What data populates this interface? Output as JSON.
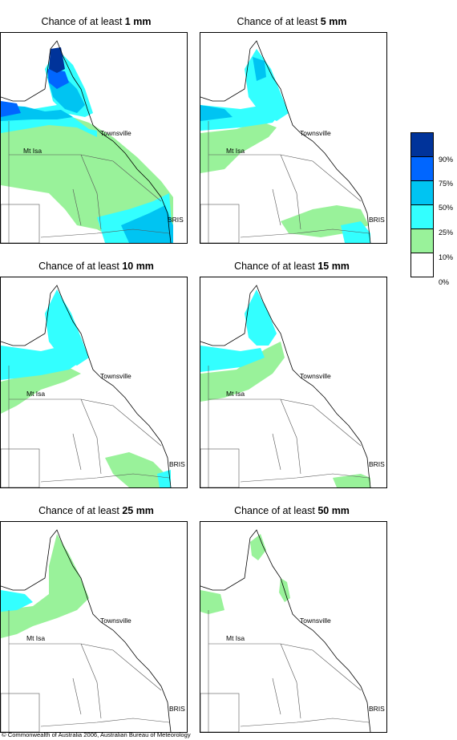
{
  "panels": [
    {
      "prefix": "Chance of at least ",
      "amount": "1 mm"
    },
    {
      "prefix": "Chance of at least ",
      "amount": "5 mm"
    },
    {
      "prefix": "Chance of at least ",
      "amount": "10 mm"
    },
    {
      "prefix": "Chance of at least ",
      "amount": "15 mm"
    },
    {
      "prefix": "Chance of at least ",
      "amount": "25 mm"
    },
    {
      "prefix": "Chance of at least ",
      "amount": "50 mm"
    }
  ],
  "places": {
    "townsville": "Townsville",
    "mt_isa": "Mt Isa",
    "bris": "BRIS"
  },
  "legend": {
    "labels": [
      "90%",
      "75%",
      "50%",
      "25%",
      "10%",
      "0%"
    ],
    "colors": [
      "#00339a",
      "#0066ff",
      "#00c4f2",
      "#33ffff",
      "#99f29a",
      "#ffffff"
    ]
  },
  "footer": "© Commonwealth of Australia 2006, Australian Bureau of Meteorology"
}
